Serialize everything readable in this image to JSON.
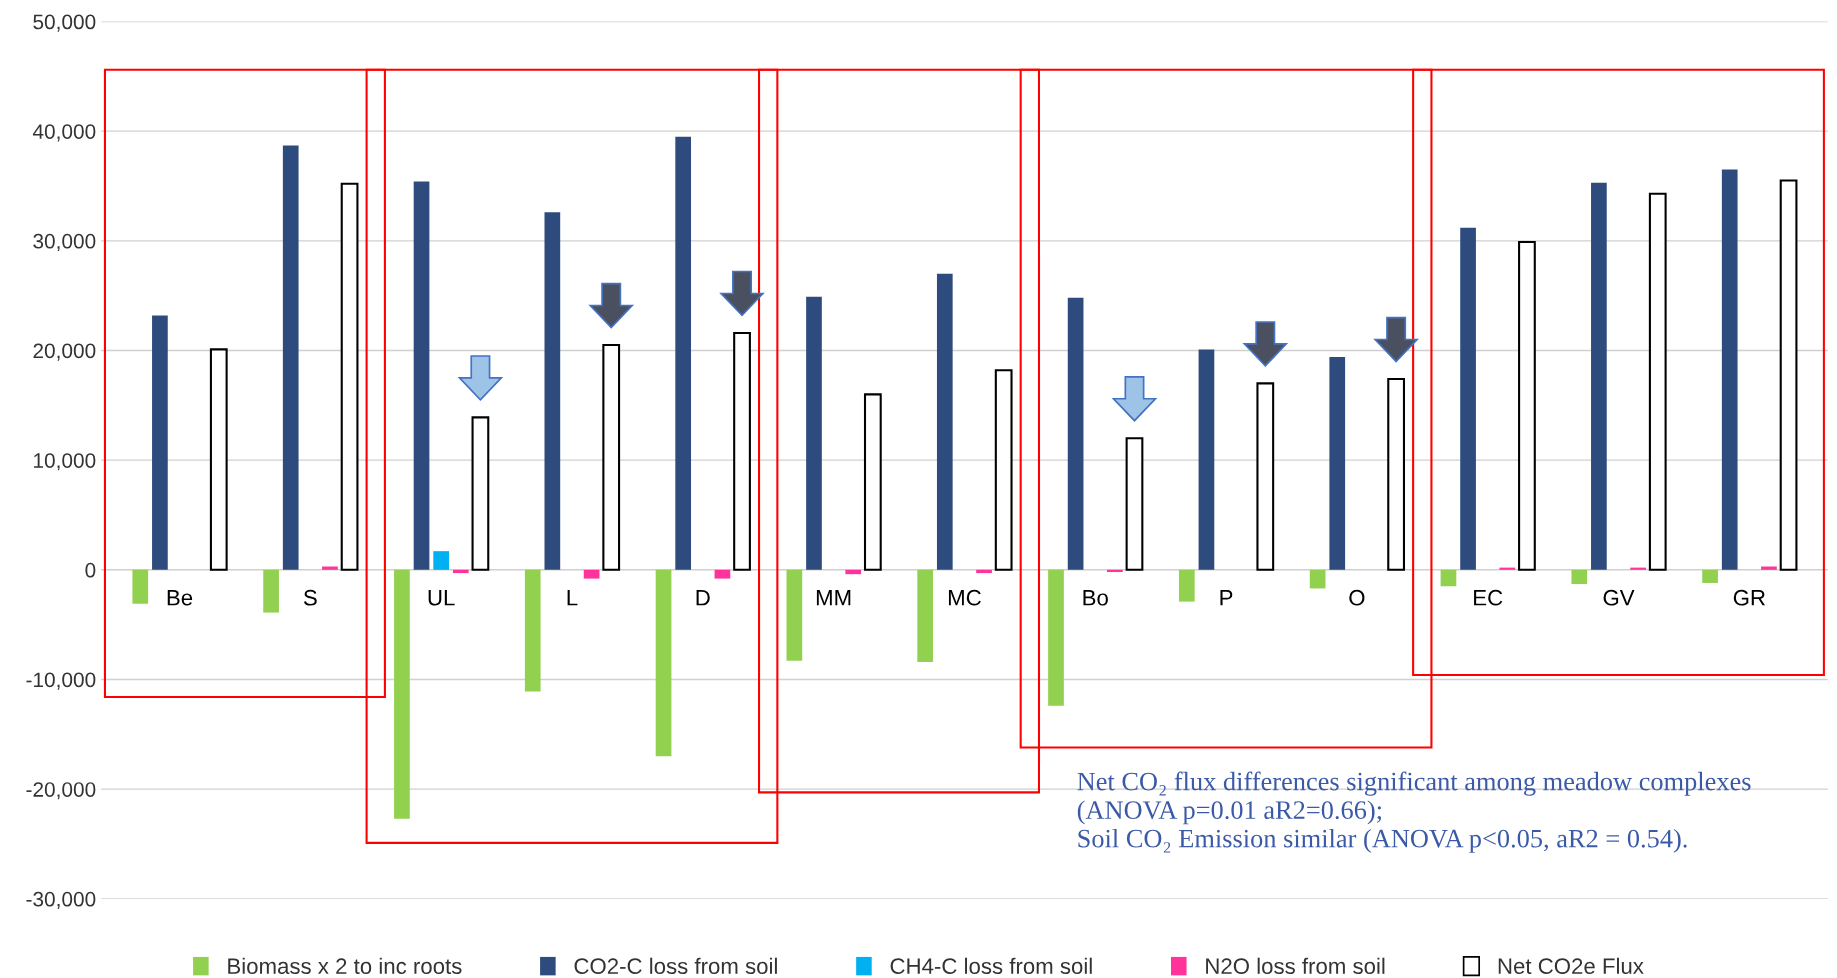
{
  "chart_data": {
    "type": "bar",
    "categories": [
      "Be",
      "S",
      "UL",
      "L",
      "D",
      "MM",
      "MC",
      "Bo",
      "P",
      "O",
      "EC",
      "GV",
      "GR"
    ],
    "series": [
      {
        "name": "Biomass x 2 to inc roots",
        "color": "#92d050",
        "values": [
          -3100,
          -3900,
          -22700,
          -11100,
          -17000,
          -8300,
          -8400,
          -12400,
          -2900,
          -1700,
          -1500,
          -1300,
          -1200
        ]
      },
      {
        "name": "CO2-C loss from soil",
        "color": "#2e4b7d",
        "values": [
          23200,
          38700,
          35400,
          32600,
          39500,
          24900,
          27000,
          24800,
          20100,
          19400,
          31200,
          35300,
          36500
        ]
      },
      {
        "name": "CH4-C loss from soil",
        "color": "#00b0f0",
        "values": [
          0,
          0,
          1700,
          0,
          0,
          0,
          0,
          0,
          0,
          0,
          0,
          0,
          0
        ]
      },
      {
        "name": "N2O loss from soil",
        "color": "#ff3399",
        "values": [
          0,
          300,
          -300,
          -800,
          -800,
          -400,
          -300,
          -200,
          0,
          0,
          200,
          200,
          300
        ]
      },
      {
        "name": "Net CO2e Flux",
        "color": "#ffffff",
        "values": [
          20100,
          35200,
          13900,
          20500,
          21600,
          16000,
          18200,
          12000,
          17000,
          17400,
          29900,
          34300,
          35500
        ]
      }
    ],
    "ylim": [
      -30000,
      50000
    ],
    "yticks": [
      {
        "value": -30000,
        "label": "-30,000"
      },
      {
        "value": -20000,
        "label": "-20,000"
      },
      {
        "value": -10000,
        "label": "-10,000"
      },
      0,
      {
        "value": 10000,
        "label": "10,000"
      },
      {
        "value": 20000,
        "label": "20,000"
      },
      {
        "value": 30000,
        "label": "30,000"
      },
      {
        "value": 40000,
        "label": "40,000"
      },
      {
        "value": 50000,
        "label": "50,000"
      }
    ],
    "grid": "y",
    "legend": "bottom",
    "annotations": [
      "Net CO₂ flux differences significant among meadow complexes\n(ANOVA p=0.01 aR2=0.66);\nSoil CO₂ Emission similar (ANOVA p<0.05, aR2 = 0.54)."
    ]
  }
}
